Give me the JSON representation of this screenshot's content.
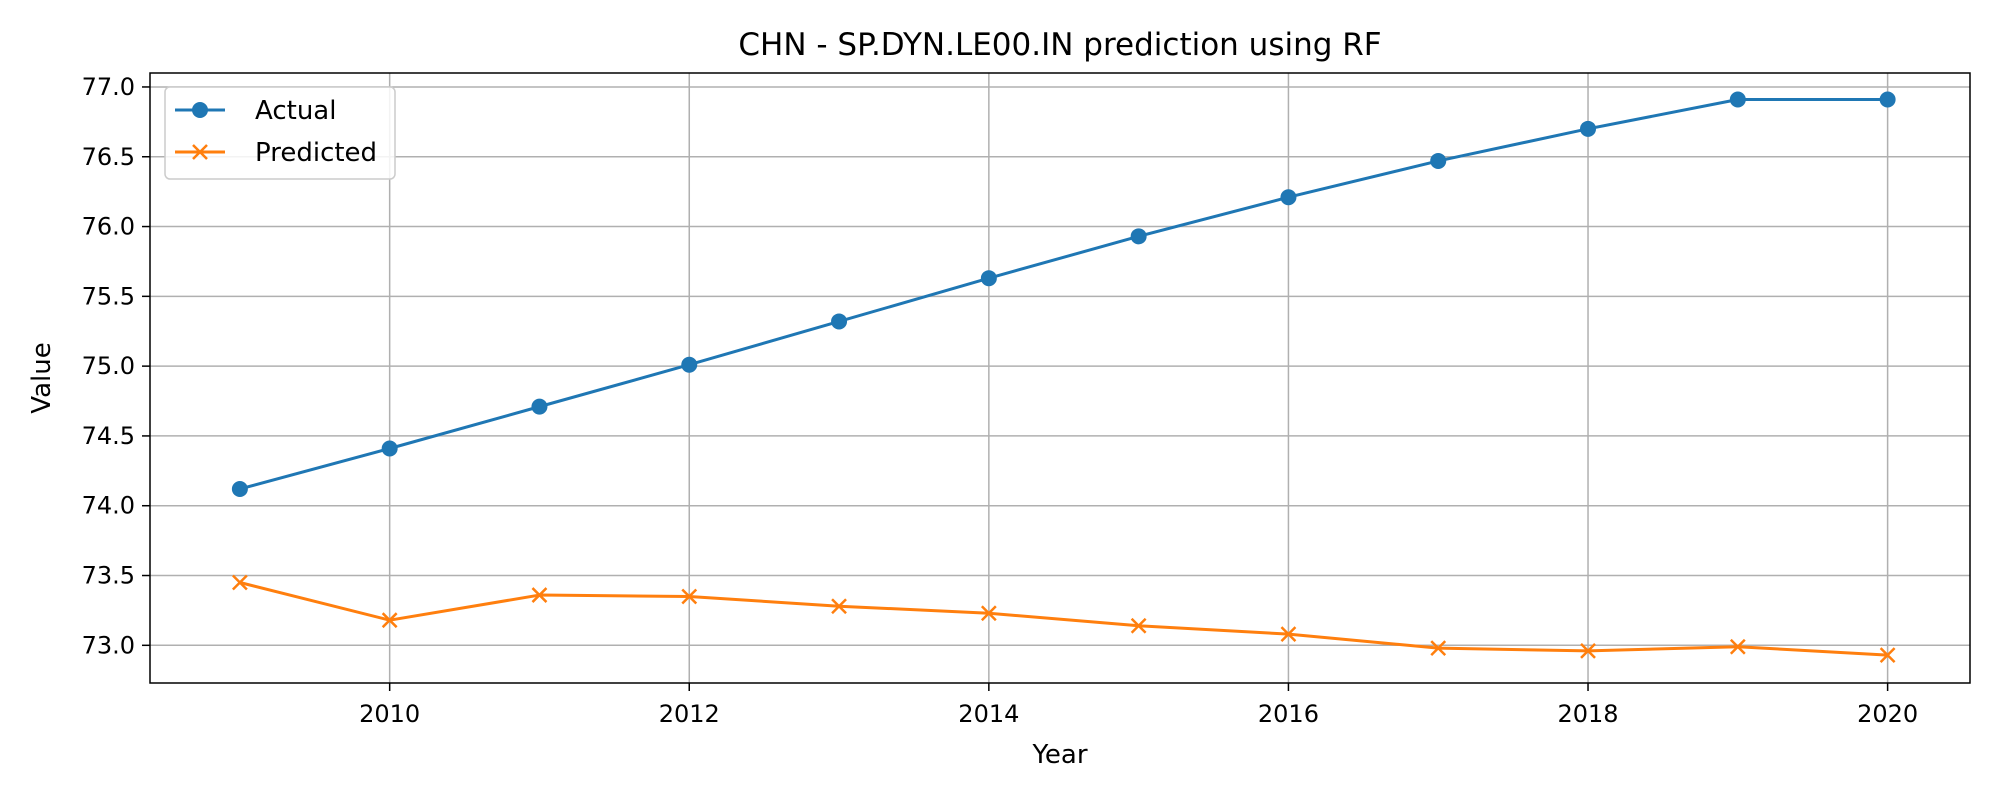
{
  "chart_data": {
    "type": "line",
    "title": "CHN - SP.DYN.LE00.IN prediction using RF",
    "xlabel": "Year",
    "ylabel": "Value",
    "x": [
      2009,
      2010,
      2011,
      2012,
      2013,
      2014,
      2015,
      2016,
      2017,
      2018,
      2019,
      2020
    ],
    "xlim": [
      2008.4,
      2020.55
    ],
    "ylim": [
      72.73,
      77.1
    ],
    "xticks": [
      "2010",
      "2012",
      "2014",
      "2016",
      "2018",
      "2020"
    ],
    "yticks": [
      "73.0",
      "73.5",
      "74.0",
      "74.5",
      "75.0",
      "75.5",
      "76.0",
      "76.5",
      "77.0"
    ],
    "grid": true,
    "legend_position": "top-left",
    "series": [
      {
        "name": "Actual",
        "color": "#1f77b4",
        "marker": "circle",
        "values": [
          74.12,
          74.41,
          74.71,
          75.01,
          75.32,
          75.63,
          75.93,
          76.21,
          76.47,
          76.7,
          76.91,
          76.91
        ]
      },
      {
        "name": "Predicted",
        "color": "#ff7f0e",
        "marker": "x",
        "values": [
          73.45,
          73.18,
          73.36,
          73.35,
          73.28,
          73.23,
          73.14,
          73.08,
          72.98,
          72.96,
          72.99,
          72.93
        ]
      }
    ]
  }
}
